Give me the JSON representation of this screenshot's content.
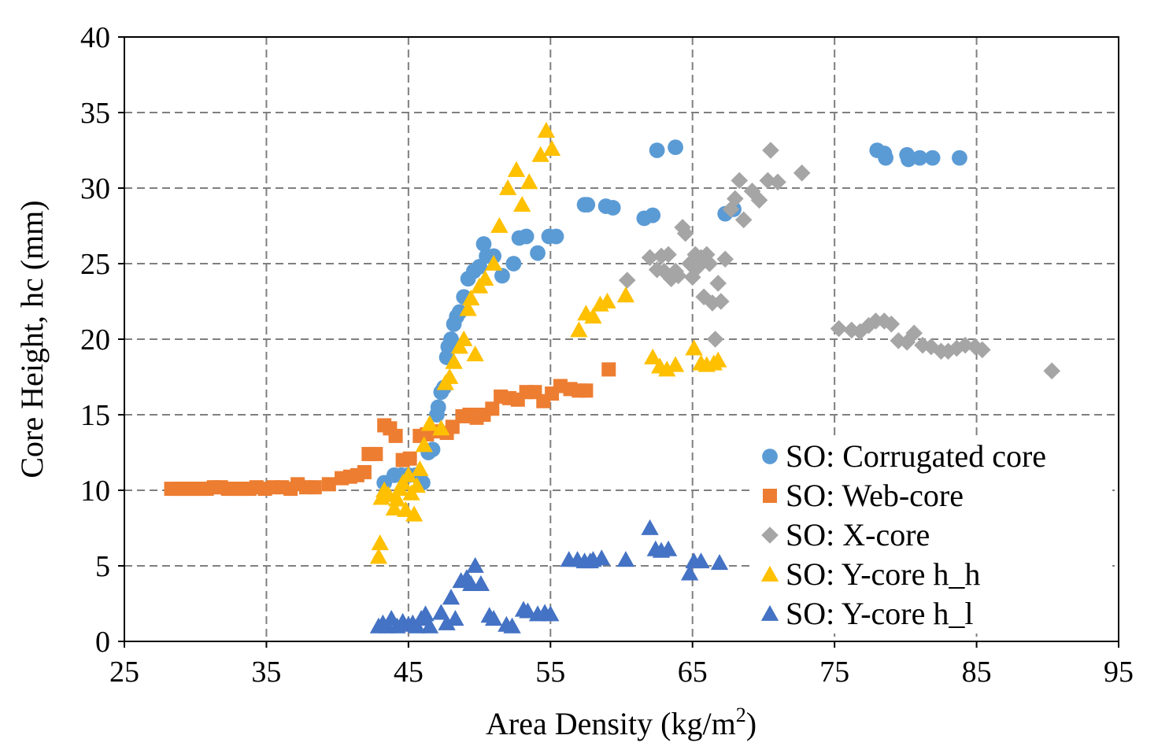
{
  "chart_data": {
    "type": "scatter",
    "title": "",
    "xlabel": "Area Density (kg/m",
    "xlabel_sup": "2",
    "xlabel_end": ")",
    "ylabel": "Core Height, hc (mm)",
    "xlim": [
      25,
      95
    ],
    "ylim": [
      0,
      40
    ],
    "xticks": [
      25,
      35,
      45,
      55,
      65,
      75,
      85,
      95
    ],
    "yticks": [
      0,
      5,
      10,
      15,
      20,
      25,
      30,
      35,
      40
    ],
    "grid": true,
    "legend_position": "lower-right",
    "series": [
      {
        "name": "SO: Corrugated core",
        "marker": "circle",
        "color": "#5b9bd5",
        "x": [
          43.3,
          44.0,
          44.5,
          45.0,
          45.5,
          46.0,
          46.4,
          46.7,
          47.0,
          47.1,
          47.3,
          47.5,
          47.7,
          47.8,
          48.0,
          48.2,
          48.4,
          48.6,
          48.9,
          49.2,
          49.6,
          50.0,
          50.3,
          50.5,
          51.0,
          51.6,
          52.4,
          52.8,
          53.3,
          54.1,
          54.9,
          55.4,
          57.4,
          57.6,
          58.9,
          59.4,
          61.6,
          62.2,
          62.5,
          63.8,
          67.3,
          67.9,
          78.0,
          78.5,
          78.6,
          80.1,
          80.2,
          81.0,
          81.9,
          83.8
        ],
        "y": [
          10.5,
          11.0,
          11.0,
          11.0,
          11.0,
          10.5,
          12.5,
          12.7,
          15.0,
          15.5,
          16.5,
          16.8,
          18.8,
          19.5,
          20.0,
          21.0,
          21.5,
          21.8,
          22.8,
          24.0,
          24.5,
          24.8,
          26.3,
          25.5,
          25.5,
          24.2,
          25.0,
          26.7,
          26.8,
          25.7,
          26.8,
          26.8,
          28.9,
          28.9,
          28.8,
          28.7,
          28.0,
          28.2,
          32.5,
          32.7,
          28.3,
          28.6,
          32.5,
          32.3,
          32.0,
          32.2,
          31.9,
          32.0,
          32.0,
          32.0
        ]
      },
      {
        "name": "SO: Web-core",
        "marker": "square",
        "color": "#ed7d31",
        "x": [
          28.3,
          28.8,
          29.3,
          29.8,
          30.3,
          30.8,
          31.3,
          31.8,
          32.3,
          32.8,
          33.3,
          33.8,
          34.3,
          34.9,
          35.5,
          36.1,
          36.7,
          37.2,
          37.8,
          38.4,
          39.4,
          40.3,
          40.9,
          41.4,
          41.9,
          42.2,
          42.7,
          43.3,
          43.7,
          44.1,
          44.6,
          45.1,
          45.8,
          46.3,
          47.0,
          47.7,
          48.1,
          48.8,
          49.3,
          49.8,
          50.3,
          50.9,
          51.5,
          52.1,
          52.7,
          53.3,
          53.9,
          54.5,
          55.1,
          55.7,
          56.4,
          57.0,
          57.5,
          59.1
        ],
        "y": [
          10.1,
          10.1,
          10.1,
          10.1,
          10.1,
          10.1,
          10.2,
          10.2,
          10.1,
          10.1,
          10.1,
          10.1,
          10.2,
          10.1,
          10.2,
          10.2,
          10.1,
          10.4,
          10.2,
          10.2,
          10.4,
          10.8,
          10.9,
          11.0,
          11.2,
          12.4,
          12.4,
          14.3,
          14.1,
          13.6,
          12.0,
          12.1,
          13.6,
          13.7,
          13.9,
          13.8,
          14.2,
          14.9,
          15.0,
          14.8,
          15.0,
          15.4,
          16.2,
          16.1,
          16.0,
          16.5,
          16.5,
          15.9,
          16.4,
          16.9,
          16.7,
          16.6,
          16.6,
          18.0
        ]
      },
      {
        "name": "SO: X-core",
        "marker": "diamond",
        "color": "#a5a5a5",
        "x": [
          60.4,
          62.0,
          62.5,
          62.8,
          63.0,
          63.3,
          63.5,
          63.8,
          64.0,
          64.3,
          64.5,
          64.8,
          65.0,
          65.2,
          65.4,
          65.6,
          65.8,
          66.0,
          66.2,
          66.4,
          66.6,
          66.8,
          67.0,
          67.3,
          67.7,
          68.0,
          68.3,
          68.6,
          69.2,
          69.7,
          70.3,
          70.5,
          71.0,
          72.7,
          75.3,
          76.2,
          76.8,
          77.4,
          77.9,
          78.5,
          79.0,
          79.5,
          80.1,
          80.6,
          81.2,
          81.8,
          82.5,
          83.0,
          83.6,
          84.2,
          84.9,
          85.4,
          90.3
        ],
        "y": [
          23.9,
          25.4,
          24.6,
          25.5,
          24.5,
          25.6,
          24.0,
          24.5,
          24.2,
          27.4,
          27.0,
          25.0,
          24.1,
          25.6,
          24.8,
          25.4,
          22.8,
          25.6,
          25.0,
          22.4,
          20.0,
          23.7,
          22.5,
          25.3,
          28.6,
          29.3,
          30.5,
          27.9,
          29.8,
          29.2,
          30.5,
          32.5,
          30.4,
          31.0,
          20.7,
          20.6,
          20.5,
          20.9,
          21.2,
          21.2,
          21.0,
          19.9,
          19.8,
          20.4,
          19.6,
          19.5,
          19.2,
          19.2,
          19.4,
          19.6,
          19.5,
          19.3,
          17.9
        ]
      },
      {
        "name": "SO: Y-core h_h",
        "marker": "triangle",
        "color": "#ffc000",
        "x": [
          42.9,
          43.0,
          43.1,
          43.3,
          43.6,
          44.0,
          44.2,
          44.4,
          44.6,
          44.8,
          45.0,
          45.2,
          45.4,
          45.6,
          45.8,
          46.1,
          46.5,
          47.3,
          47.6,
          47.9,
          48.2,
          48.6,
          48.9,
          49.2,
          49.4,
          49.7,
          50.0,
          50.4,
          51.0,
          51.4,
          52.0,
          52.6,
          53.0,
          53.5,
          54.3,
          54.7,
          55.1,
          57.0,
          57.5,
          58.0,
          58.5,
          59.0,
          60.3,
          62.2,
          62.7,
          63.2,
          63.8,
          65.1,
          65.6,
          66.0,
          66.5,
          66.8
        ],
        "y": [
          5.6,
          6.5,
          9.5,
          10.0,
          9.7,
          8.8,
          9.4,
          10.1,
          10.5,
          8.7,
          11.0,
          9.8,
          8.4,
          10.3,
          11.4,
          13.0,
          14.4,
          14.1,
          17.1,
          17.5,
          18.5,
          19.5,
          20.0,
          22.0,
          22.7,
          19.0,
          23.5,
          24.0,
          25.0,
          27.5,
          30.0,
          31.2,
          28.9,
          30.4,
          32.2,
          33.8,
          32.6,
          20.6,
          21.7,
          21.5,
          22.3,
          22.5,
          22.9,
          18.8,
          18.2,
          18.0,
          18.3,
          19.4,
          18.4,
          18.3,
          18.4,
          18.6
        ]
      },
      {
        "name": "SO: Y-core h_l",
        "marker": "triangle",
        "color": "#4472c4",
        "x": [
          42.9,
          43.2,
          43.5,
          43.8,
          44.2,
          44.6,
          45.0,
          45.3,
          45.6,
          45.9,
          46.2,
          46.5,
          47.3,
          47.7,
          48.0,
          48.3,
          48.7,
          49.1,
          49.4,
          49.7,
          50.1,
          50.7,
          51.0,
          51.9,
          52.3,
          53.1,
          53.4,
          54.1,
          54.6,
          55.0,
          56.3,
          56.9,
          57.4,
          57.8,
          58.0,
          58.6,
          60.3,
          62.0,
          62.4,
          62.8,
          63.3,
          64.8,
          65.1,
          65.6,
          66.9
        ],
        "y": [
          1.0,
          1.2,
          1.0,
          1.5,
          1.0,
          1.3,
          1.1,
          1.2,
          1.0,
          1.5,
          1.8,
          1.0,
          1.9,
          1.2,
          2.9,
          1.5,
          4.0,
          4.2,
          3.8,
          5.0,
          3.8,
          1.7,
          1.5,
          1.1,
          1.0,
          2.1,
          2.0,
          1.8,
          1.9,
          1.8,
          5.4,
          5.4,
          5.3,
          5.3,
          5.4,
          5.5,
          5.4,
          7.5,
          6.1,
          6.0,
          6.1,
          4.5,
          5.3,
          5.3,
          5.2
        ]
      }
    ]
  }
}
